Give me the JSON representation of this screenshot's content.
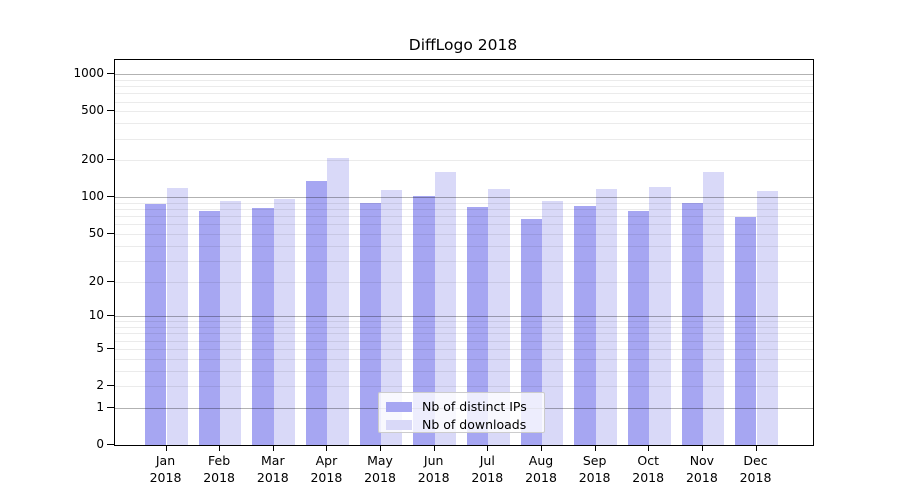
{
  "title": "DiffLogo 2018",
  "colors": {
    "bar_ips": "#a6a6f2",
    "bar_downloads": "#d9d9f8",
    "grid_major": "rgba(0,0,0,0.30)",
    "grid_minor": "rgba(0,0,0,0.08)",
    "axis_border": "#000000",
    "legend_border": "#cccccc"
  },
  "legend": {
    "items": [
      {
        "label": "Nb of distinct IPs",
        "color_key": "bar_ips"
      },
      {
        "label": "Nb of downloads",
        "color_key": "bar_downloads"
      }
    ]
  },
  "chart_data": {
    "type": "bar",
    "title": "DiffLogo 2018",
    "categories": [
      "Jan",
      "Feb",
      "Mar",
      "Apr",
      "May",
      "Jun",
      "Jul",
      "Aug",
      "Sep",
      "Oct",
      "Nov",
      "Dec"
    ],
    "year_label": "2018",
    "series": [
      {
        "name": "Nb of distinct IPs",
        "values": [
          88,
          77,
          82,
          136,
          89,
          103,
          84,
          67,
          85,
          77,
          90,
          69
        ]
      },
      {
        "name": "Nb of downloads",
        "values": [
          119,
          93,
          97,
          208,
          115,
          160,
          116,
          94,
          117,
          121,
          162,
          113
        ]
      }
    ],
    "yscale": "log1p",
    "yticks": [
      0,
      1,
      2,
      5,
      10,
      20,
      50,
      100,
      200,
      500,
      1000
    ],
    "ytick_labels": [
      "0",
      "1",
      "2",
      "5",
      "10",
      "20",
      "50",
      "100",
      "200",
      "500",
      "1000"
    ],
    "grid_major_at": [
      1,
      10,
      100,
      1000
    ],
    "grid_minor_at": [
      2,
      3,
      4,
      5,
      6,
      7,
      8,
      9,
      20,
      30,
      40,
      50,
      60,
      70,
      80,
      90,
      200,
      300,
      400,
      500,
      600,
      700,
      800,
      900
    ],
    "ylim": [
      0,
      1300
    ],
    "grid": true,
    "legend_position": "lower-center",
    "xlabel": "",
    "ylabel": ""
  }
}
